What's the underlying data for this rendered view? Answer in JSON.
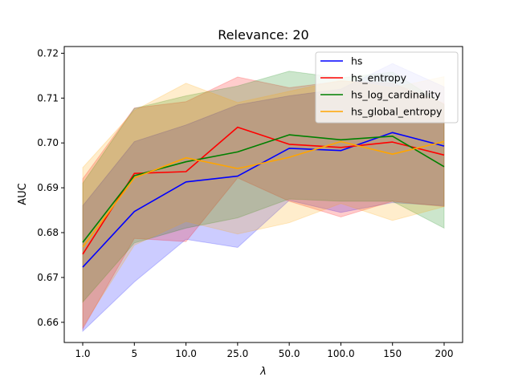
{
  "chart_data": {
    "type": "line",
    "title": "Relevance: 20",
    "xlabel": "λ",
    "ylabel": "AUC",
    "categories": [
      "1.0",
      "5",
      "10.0",
      "25.0",
      "50.0",
      "100.0",
      "150",
      "200"
    ],
    "ylim": [
      0.6555,
      0.7215
    ],
    "yticks": [
      "0.66",
      "0.67",
      "0.68",
      "0.69",
      "0.70",
      "0.71",
      "0.72"
    ],
    "ytick_values": [
      0.66,
      0.67,
      0.68,
      0.69,
      0.7,
      0.71,
      0.72
    ],
    "grid": false,
    "legend_position": "upper right",
    "series": [
      {
        "name": "hs",
        "color": "#0000ff",
        "values": [
          0.6723,
          0.6847,
          0.6913,
          0.6926,
          0.6988,
          0.6983,
          0.7023,
          0.6993
        ],
        "lower": [
          0.658,
          0.669,
          0.6785,
          0.6767,
          0.6872,
          0.6845,
          0.6867,
          0.686
        ],
        "upper": [
          0.686,
          0.7003,
          0.704,
          0.7085,
          0.7105,
          0.712,
          0.7177,
          0.7125
        ]
      },
      {
        "name": "hs_entropy",
        "color": "#ff0000",
        "values": [
          0.6752,
          0.6932,
          0.6936,
          0.7035,
          0.6997,
          0.699,
          0.7002,
          0.6973
        ],
        "lower": [
          0.6585,
          0.6787,
          0.678,
          0.6922,
          0.687,
          0.6835,
          0.687,
          0.6858
        ],
        "upper": [
          0.692,
          0.7078,
          0.7092,
          0.7147,
          0.7123,
          0.7138,
          0.7133,
          0.7088
        ]
      },
      {
        "name": "hs_log_cardinality",
        "color": "#008000",
        "values": [
          0.6778,
          0.6927,
          0.6958,
          0.698,
          0.7018,
          0.7007,
          0.7015,
          0.6947
        ],
        "lower": [
          0.6645,
          0.6777,
          0.681,
          0.6833,
          0.6875,
          0.687,
          0.687,
          0.681
        ],
        "upper": [
          0.691,
          0.7077,
          0.7105,
          0.7127,
          0.716,
          0.7145,
          0.7158,
          0.7085
        ]
      },
      {
        "name": "hs_global_entropy",
        "color": "#ffa500",
        "values": [
          0.6768,
          0.6922,
          0.6967,
          0.6943,
          0.6968,
          0.7003,
          0.6975,
          0.7003
        ],
        "lower": [
          0.659,
          0.6772,
          0.6825,
          0.6797,
          0.6822,
          0.6865,
          0.6827,
          0.6858
        ],
        "upper": [
          0.6945,
          0.7072,
          0.7133,
          0.709,
          0.7115,
          0.714,
          0.7123,
          0.7148
        ]
      }
    ]
  }
}
